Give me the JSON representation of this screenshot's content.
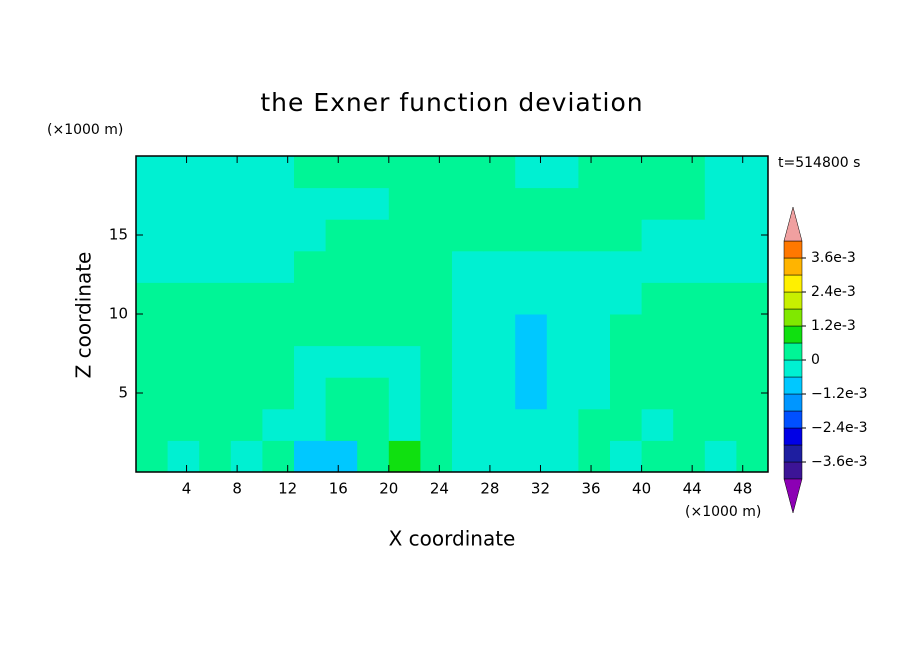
{
  "chart_data": {
    "type": "contour",
    "title": "the Exner function deviation",
    "x_label": "X coordinate",
    "y_label": "Z coordinate",
    "x_unit": "(×1000 m)",
    "y_unit": "(×1000 m)",
    "time_label": "t=514800 s",
    "xlim": [
      0,
      50
    ],
    "ylim": [
      0,
      20
    ],
    "xticks": [
      4,
      8,
      12,
      16,
      20,
      24,
      28,
      32,
      36,
      40,
      44,
      48
    ],
    "yticks": [
      5,
      10,
      15
    ],
    "x": [
      1.25,
      3.75,
      6.25,
      8.75,
      11.25,
      13.75,
      16.25,
      18.75,
      21.25,
      23.75,
      26.25,
      28.75,
      31.25,
      33.75,
      36.25,
      38.75,
      41.25,
      43.75,
      46.25,
      48.75
    ],
    "z": [
      1,
      3,
      5,
      7,
      9,
      11,
      13,
      15,
      17,
      19
    ],
    "values": [
      [
        0.0003,
        -0.0003,
        0.0003,
        -0.0003,
        0.0003,
        -0.0009,
        -0.0009,
        0.0003,
        0.0009,
        0.0003,
        -0.0003,
        -0.0003,
        -0.0003,
        -0.0003,
        0.0003,
        -0.0003,
        0.0003,
        0.0003,
        -0.0003,
        0.0003
      ],
      [
        0.0003,
        0.0003,
        0.0003,
        0.0003,
        -0.0003,
        -0.0003,
        0.0003,
        0.0003,
        -0.0003,
        0.0003,
        -0.0003,
        -0.0003,
        -0.0003,
        -0.0003,
        0.0003,
        0.0003,
        -0.0003,
        0.0003,
        0.0003,
        0.0003
      ],
      [
        0.0003,
        0.0003,
        0.0003,
        0.0003,
        0.0003,
        -0.0003,
        0.0003,
        0.0003,
        -0.0003,
        0.0003,
        -0.0003,
        -0.0003,
        -0.0009,
        -0.0003,
        -0.0003,
        0.0003,
        0.0003,
        0.0003,
        0.0003,
        0.0003
      ],
      [
        0.0003,
        0.0003,
        0.0003,
        0.0003,
        0.0003,
        -0.0003,
        -0.0003,
        -0.0003,
        -0.0003,
        0.0003,
        -0.0003,
        -0.0003,
        -0.0009,
        -0.0003,
        -0.0003,
        0.0003,
        0.0003,
        0.0003,
        0.0003,
        0.0003
      ],
      [
        0.0003,
        0.0003,
        0.0003,
        0.0003,
        0.0003,
        0.0003,
        0.0003,
        0.0003,
        0.0003,
        0.0003,
        -0.0003,
        -0.0003,
        -0.0009,
        -0.0003,
        -0.0003,
        0.0003,
        0.0003,
        0.0003,
        0.0003,
        0.0003
      ],
      [
        0.0003,
        0.0003,
        0.0003,
        0.0003,
        0.0003,
        0.0003,
        0.0003,
        0.0003,
        0.0003,
        0.0003,
        -0.0003,
        -0.0003,
        -0.0003,
        -0.0003,
        -0.0003,
        -0.0003,
        0.0003,
        0.0003,
        0.0003,
        0.0003
      ],
      [
        -0.0003,
        -0.0003,
        -0.0003,
        -0.0003,
        -0.0003,
        0.0003,
        0.0003,
        0.0003,
        0.0003,
        0.0003,
        -0.0003,
        -0.0003,
        -0.0003,
        -0.0003,
        -0.0003,
        -0.0003,
        -0.0003,
        -0.0003,
        -0.0003,
        -0.0003
      ],
      [
        -0.0003,
        -0.0003,
        -0.0003,
        -0.0003,
        -0.0003,
        -0.0003,
        0.0003,
        0.0003,
        0.0003,
        0.0003,
        0.0003,
        0.0003,
        0.0003,
        0.0003,
        0.0003,
        0.0003,
        -0.0003,
        -0.0003,
        -0.0003,
        -0.0003
      ],
      [
        -0.0003,
        -0.0003,
        -0.0003,
        -0.0003,
        -0.0003,
        -0.0003,
        -0.0003,
        -0.0003,
        0.0003,
        0.0003,
        0.0003,
        0.0003,
        0.0003,
        0.0003,
        0.0003,
        0.0003,
        0.0003,
        0.0003,
        -0.0003,
        -0.0003
      ],
      [
        -0.0003,
        -0.0003,
        -0.0003,
        -0.0003,
        -0.0003,
        0.0003,
        0.0003,
        0.0003,
        0.0003,
        0.0003,
        0.0003,
        0.0003,
        -0.0003,
        -0.0003,
        0.0003,
        0.0003,
        0.0003,
        0.0003,
        -0.0003,
        -0.0003
      ]
    ],
    "levels": [
      -0.0042,
      -0.0036,
      -0.003,
      -0.0024,
      -0.0018,
      -0.0012,
      -0.0006,
      0,
      0.0006,
      0.0012,
      0.0018,
      0.0024,
      0.003,
      0.0036,
      0.0042
    ],
    "colors": [
      "#3c1496",
      "#1e1ea0",
      "#0000e6",
      "#0050ff",
      "#0096ff",
      "#00c8ff",
      "#00f0d2",
      "#00f596",
      "#10e010",
      "#80e800",
      "#c8f000",
      "#fff000",
      "#ffb400",
      "#ff7800",
      "#e61e1e"
    ],
    "under_color": "#8c00b4",
    "over_color": "#f0a0a0",
    "colorbar_ticks": [
      {
        "value": 0.0036,
        "label": "3.6e-3"
      },
      {
        "value": 0.0024,
        "label": "2.4e-3"
      },
      {
        "value": 0.0012,
        "label": "1.2e-3"
      },
      0,
      {
        "value": -0.0012,
        "label": "−1.2e-3"
      },
      {
        "value": -0.0024,
        "label": "−2.4e-3"
      },
      {
        "value": -0.0036,
        "label": "−3.6e-3"
      }
    ]
  }
}
